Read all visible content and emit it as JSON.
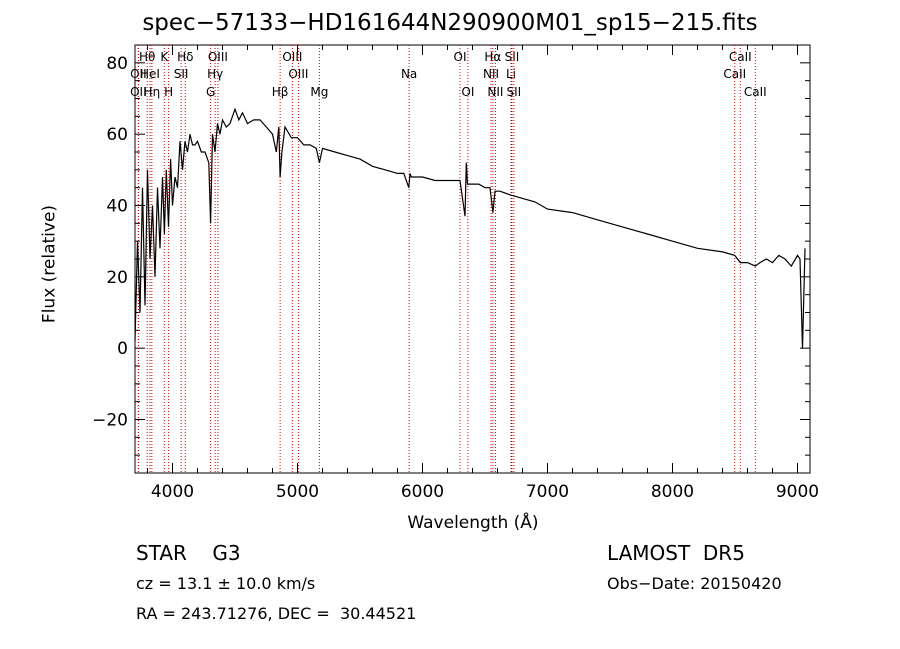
{
  "title": "spec−57133−HD161644N290900M01_sp15−215.fits",
  "object_line": "STAR    G3",
  "survey": "LAMOST  DR5",
  "cz_line": "cz = 13.1 ± 10.0 km/s",
  "obs_date": "Obs−Date: 20150420",
  "radec_line": "RA = 243.71276, DEC =  30.44521",
  "chart_data": {
    "type": "line",
    "title": "spec−57133−HD161644N290900M01_sp15−215.fits",
    "xlabel": "Wavelength (Å)",
    "ylabel": "Flux (relative)",
    "xlim": [
      3700,
      9100
    ],
    "ylim": [
      -35,
      85
    ],
    "xticks": [
      4000,
      5000,
      6000,
      7000,
      8000,
      9000
    ],
    "yticks": [
      -20,
      0,
      20,
      40,
      60,
      80
    ],
    "ytick_labels": [
      "−20",
      "0",
      "20",
      "40",
      "60",
      "80"
    ],
    "grid": false,
    "series": [
      {
        "x": [
          3700,
          3720,
          3740,
          3760,
          3780,
          3800,
          3820,
          3840,
          3860,
          3880,
          3900,
          3920,
          3935,
          3950,
          3968,
          3985,
          4000,
          4020,
          4040,
          4060,
          4080,
          4100,
          4120,
          4140,
          4160,
          4180,
          4200,
          4230,
          4260,
          4290,
          4305,
          4320,
          4340,
          4360,
          4380,
          4400,
          4430,
          4460,
          4500,
          4530,
          4560,
          4600,
          4650,
          4700,
          4750,
          4800,
          4830,
          4850,
          4861,
          4875,
          4900,
          4950,
          5000,
          5050,
          5100,
          5150,
          5175,
          5200,
          5300,
          5400,
          5500,
          5600,
          5700,
          5800,
          5850,
          5890,
          5900,
          5910,
          5950,
          6000,
          6100,
          6200,
          6300,
          6340,
          6350,
          6360,
          6400,
          6450,
          6500,
          6540,
          6563,
          6580,
          6620,
          6700,
          6800,
          6900,
          7000,
          7200,
          7400,
          7600,
          7800,
          8000,
          8200,
          8400,
          8498,
          8542,
          8600,
          8662,
          8700,
          8750,
          8800,
          8850,
          8900,
          8950,
          9000,
          9020,
          9040,
          9060
        ],
        "y": [
          2,
          30,
          10,
          45,
          12,
          50,
          25,
          40,
          20,
          45,
          28,
          48,
          32,
          50,
          34,
          53,
          40,
          48,
          45,
          58,
          50,
          58,
          55,
          60,
          57,
          57,
          58,
          55,
          55,
          52,
          35,
          60,
          55,
          63,
          60,
          64,
          62,
          63,
          67,
          64,
          66,
          63,
          64,
          64,
          62,
          60,
          55,
          62,
          48,
          55,
          62,
          59,
          59,
          57,
          57,
          56,
          52,
          56,
          55,
          54,
          53,
          51,
          50,
          49,
          49,
          45,
          49,
          48,
          48,
          48,
          47,
          47,
          47,
          37,
          52,
          46,
          46,
          46,
          45,
          45,
          38,
          44,
          44,
          43,
          42,
          41,
          39,
          38,
          36,
          34,
          32,
          30,
          28,
          27,
          26,
          24,
          24,
          23,
          24,
          25,
          24,
          26,
          25,
          23,
          26,
          25,
          0,
          28
        ],
        "color": "#000000"
      }
    ],
    "lines_color": "#cc0000",
    "spectral_lines": [
      {
        "name": "OII",
        "x": 3727,
        "row": 1
      },
      {
        "name": "OII",
        "x": 3727,
        "row": 2
      },
      {
        "name": "Hθ",
        "x": 3797,
        "row": 0
      },
      {
        "name": "HeI",
        "x": 3820,
        "row": 1
      },
      {
        "name": "Hη",
        "x": 3835,
        "row": 2
      },
      {
        "name": "K",
        "x": 3934,
        "row": 0
      },
      {
        "name": "SII",
        "x": 4069,
        "row": 1
      },
      {
        "name": "H",
        "x": 3969,
        "row": 2
      },
      {
        "name": "Hδ",
        "x": 4102,
        "row": 0
      },
      {
        "name": "OIII",
        "x": 4363,
        "row": 0
      },
      {
        "name": "Hγ",
        "x": 4341,
        "row": 1
      },
      {
        "name": "G",
        "x": 4305,
        "row": 2
      },
      {
        "name": "Hβ",
        "x": 4861,
        "row": 2
      },
      {
        "name": "OIII",
        "x": 4959,
        "row": 0
      },
      {
        "name": "OIII",
        "x": 5007,
        "row": 1
      },
      {
        "name": "Mg",
        "x": 5175,
        "row": 2
      },
      {
        "name": "Na",
        "x": 5893,
        "row": 1
      },
      {
        "name": "OI",
        "x": 6300,
        "row": 0
      },
      {
        "name": "OI",
        "x": 6363,
        "row": 2
      },
      {
        "name": "Hα",
        "x": 6563,
        "row": 0
      },
      {
        "name": "NII",
        "x": 6548,
        "row": 1
      },
      {
        "name": "NII",
        "x": 6583,
        "row": 2
      },
      {
        "name": "SII",
        "x": 6716,
        "row": 0
      },
      {
        "name": "Li",
        "x": 6708,
        "row": 1
      },
      {
        "name": "SII",
        "x": 6731,
        "row": 2
      },
      {
        "name": "CaII",
        "x": 8542,
        "row": 0
      },
      {
        "name": "CaII",
        "x": 8498,
        "row": 1
      },
      {
        "name": "CaII",
        "x": 8662,
        "row": 2
      }
    ]
  }
}
